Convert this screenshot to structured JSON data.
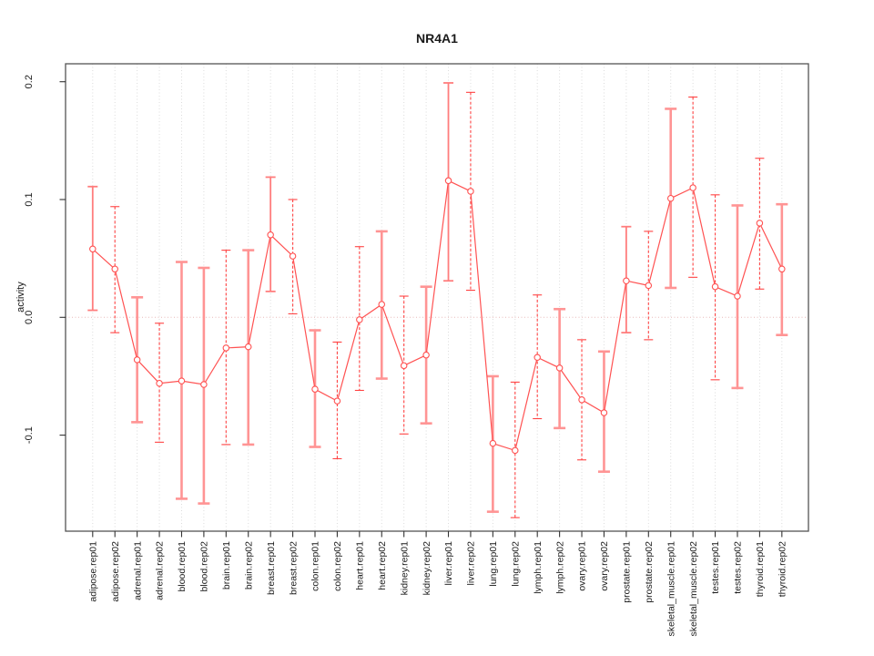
{
  "chart_data": {
    "type": "line",
    "title": "NR4A1",
    "ylabel": "activity",
    "xlabel": "",
    "legend": "none",
    "grid": "vertical-dotted",
    "marker": "open-circle",
    "error_bars": true,
    "zero_reference_line": 0.0,
    "ylim": [
      -0.185,
      0.215
    ],
    "yticks": [
      0.2,
      0.1,
      0.0,
      -0.1
    ],
    "ytick_labels": [
      "0.2",
      "0.1",
      "0.0",
      "-0.1"
    ],
    "categories": [
      "adipose.rep01",
      "adipose.rep02",
      "adrenal.rep01",
      "adrenal.rep02",
      "blood.rep01",
      "blood.rep02",
      "brain.rep01",
      "brain.rep02",
      "breast.rep01",
      "breast.rep02",
      "colon.rep01",
      "colon.rep02",
      "heart.rep01",
      "heart.rep02",
      "kidney.rep01",
      "kidney.rep02",
      "liver.rep01",
      "liver.rep02",
      "lung.rep01",
      "lung.rep02",
      "lymph.rep01",
      "lymph.rep02",
      "ovary.rep01",
      "ovary.rep02",
      "prostate.rep01",
      "prostate.rep02",
      "skeletal_muscle.rep01",
      "skeletal_muscle.rep02",
      "testes.rep01",
      "testes.rep02",
      "thyroid.rep01",
      "thyroid.rep02"
    ],
    "series": [
      {
        "name": "NR4A1 activity",
        "values": [
          0.058,
          0.041,
          -0.036,
          -0.056,
          -0.054,
          -0.057,
          -0.026,
          -0.025,
          0.07,
          0.052,
          -0.061,
          -0.071,
          -0.002,
          0.011,
          -0.041,
          -0.032,
          0.116,
          0.107,
          -0.107,
          -0.113,
          -0.034,
          -0.043,
          -0.07,
          -0.081,
          0.031,
          0.027,
          0.101,
          0.11,
          0.026,
          0.018,
          0.08,
          0.041
        ],
        "ci_low": [
          0.006,
          -0.013,
          -0.089,
          -0.106,
          -0.154,
          -0.158,
          -0.108,
          -0.108,
          0.022,
          0.003,
          -0.11,
          -0.12,
          -0.062,
          -0.052,
          -0.099,
          -0.09,
          0.031,
          0.023,
          -0.165,
          -0.17,
          -0.086,
          -0.094,
          -0.121,
          -0.131,
          -0.013,
          -0.019,
          0.025,
          0.034,
          -0.053,
          -0.06,
          0.024,
          -0.015
        ],
        "ci_high": [
          0.111,
          0.094,
          0.017,
          -0.005,
          0.047,
          0.042,
          0.057,
          0.057,
          0.119,
          0.1,
          -0.011,
          -0.021,
          0.06,
          0.073,
          0.018,
          0.026,
          0.199,
          0.191,
          -0.05,
          -0.055,
          0.019,
          0.007,
          -0.019,
          -0.029,
          0.077,
          0.073,
          0.177,
          0.187,
          0.104,
          0.095,
          0.135,
          0.096
        ],
        "bar_styles": [
          "solid-thin",
          "dashed",
          "solid",
          "dashed",
          "solid",
          "solid",
          "dashed",
          "solid",
          "solid-thin",
          "dashed",
          "solid",
          "dashed",
          "dashed",
          "solid",
          "dashed",
          "solid",
          "solid-thin",
          "dashed",
          "solid",
          "dashed",
          "dashed",
          "solid",
          "dashed",
          "solid",
          "solid-thin",
          "dashed",
          "solid",
          "dashed",
          "dashed",
          "solid",
          "dashed",
          "solid"
        ]
      }
    ],
    "colors": {
      "line": "#ff5252",
      "marker": "#ff5252",
      "bar_solid": "#ff9494",
      "bar_solid_thin": "#ff7d7d",
      "bar_dashed": "#ff4343",
      "zero_line": "#e8b9b9",
      "grid": "#dcdcdc",
      "box": "#555555",
      "tick": "#333333",
      "text": "#1a1a1a"
    }
  }
}
